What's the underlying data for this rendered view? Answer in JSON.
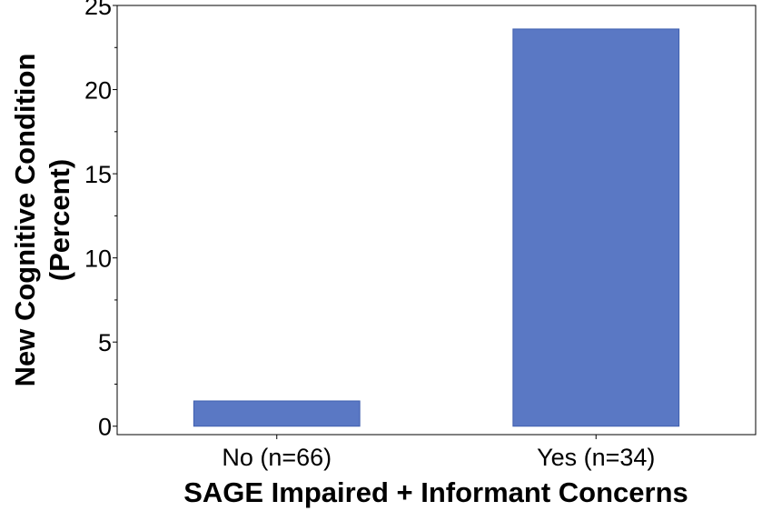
{
  "chart_data": {
    "type": "bar",
    "categories": [
      "No (n=66)",
      "Yes (n=34)"
    ],
    "values": [
      1.5,
      23.6
    ],
    "title": "",
    "xlabel": "SAGE Impaired + Informant Concerns",
    "ylabel_lines": [
      "New Cognitive Condition",
      "(Percent)"
    ],
    "ylim": [
      -0.5,
      25
    ],
    "yticks": [
      0,
      5,
      10,
      15,
      20,
      25
    ],
    "ytick_labels": [
      "0",
      "5",
      "10",
      "15",
      "20",
      "25"
    ],
    "bar_color": "#5a78c4",
    "bar_edge_color": "#3f5fae",
    "grid": false
  }
}
